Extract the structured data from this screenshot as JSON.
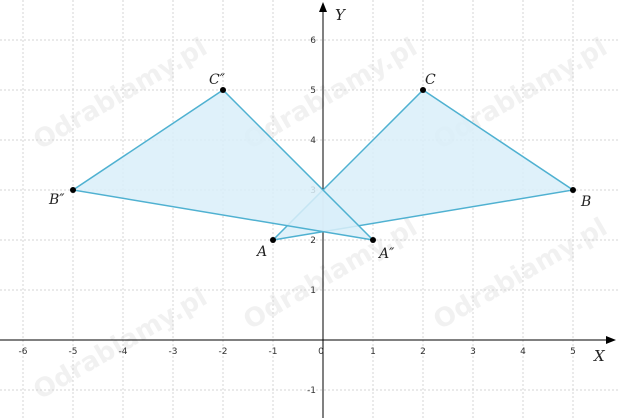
{
  "diagram": {
    "x_axis_label": "X",
    "y_axis_label": "Y",
    "x_range": [
      -6,
      5
    ],
    "y_range": [
      -1,
      6
    ],
    "x_ticks": [
      "-6",
      "-5",
      "-4",
      "-3",
      "-2",
      "-1",
      "0",
      "1",
      "2",
      "3",
      "4",
      "5"
    ],
    "y_ticks": [
      "-1",
      "1",
      "2",
      "3",
      "4",
      "5",
      "6"
    ],
    "grid": true,
    "triangles": [
      {
        "id": "ABC",
        "vertices": [
          {
            "label": "A",
            "x": -1,
            "y": 2
          },
          {
            "label": "B",
            "x": 5,
            "y": 3
          },
          {
            "label": "C",
            "x": 2,
            "y": 5
          }
        ]
      },
      {
        "id": "A''B''C''",
        "vertices": [
          {
            "label": "A″",
            "x": 1,
            "y": 2
          },
          {
            "label": "B″",
            "x": -5,
            "y": 3
          },
          {
            "label": "C″",
            "x": -2,
            "y": 5
          }
        ]
      }
    ],
    "colors": {
      "triangle_fill": "#d9eef9",
      "triangle_stroke": "#4fb1d1",
      "axis": "#000000",
      "grid": "#d4d4d4",
      "vertex": "#000000"
    },
    "watermark": "Odrabiamy.pl"
  }
}
